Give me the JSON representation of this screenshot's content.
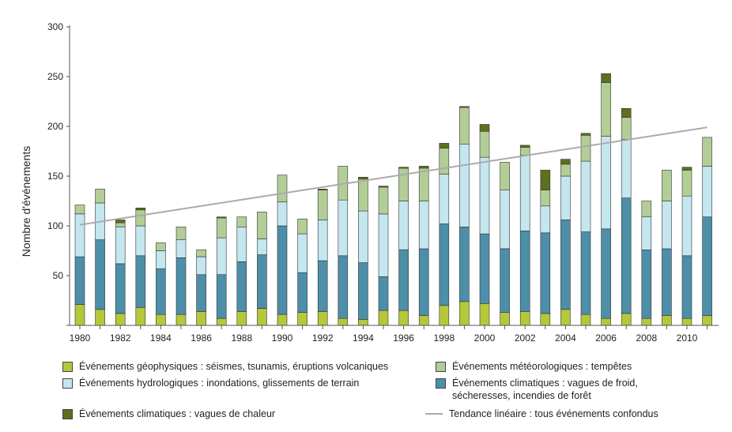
{
  "chart_data": {
    "type": "bar",
    "stacked": true,
    "ylabel": "Nombre d'événements",
    "ylim": [
      0,
      300
    ],
    "yticks": [
      "0",
      "50",
      "100",
      "150",
      "200",
      "250",
      "300"
    ],
    "categories": [
      "1980",
      "1981",
      "1982",
      "1983",
      "1984",
      "1985",
      "1986",
      "1987",
      "1988",
      "1989",
      "1990",
      "1991",
      "1992",
      "1993",
      "1994",
      "1995",
      "1996",
      "1997",
      "1998",
      "1999",
      "2000",
      "2001",
      "2002",
      "2003",
      "2004",
      "2005",
      "2006",
      "2007",
      "2008",
      "2009",
      "2010",
      "2011"
    ],
    "xtick_labels": [
      "1980",
      "",
      "1982",
      "",
      "1984",
      "",
      "1986",
      "",
      "1988",
      "",
      "1990",
      "",
      "1992",
      "",
      "1994",
      "",
      "1996",
      "",
      "1998",
      "",
      "2000",
      "",
      "2002",
      "",
      "2004",
      "",
      "2006",
      "",
      "2008",
      "",
      "2010",
      ""
    ],
    "series": [
      {
        "name": "Événements géophysiques : séismes, tsunamis, éruptions volcaniques",
        "color": "#b5c73a",
        "values": [
          21,
          16,
          12,
          18,
          11,
          11,
          14,
          7,
          14,
          17,
          11,
          13,
          14,
          7,
          6,
          15,
          15,
          10,
          20,
          24,
          22,
          13,
          14,
          12,
          16,
          11,
          7,
          12,
          7,
          10,
          7,
          10
        ]
      },
      {
        "name": "Événements climatiques : vagues de froid, sécheresses, incendies de forêt",
        "color": "#4d8ea8",
        "values": [
          48,
          70,
          50,
          52,
          46,
          57,
          37,
          44,
          50,
          54,
          89,
          40,
          51,
          63,
          57,
          34,
          61,
          67,
          82,
          75,
          70,
          64,
          81,
          81,
          90,
          83,
          90,
          116,
          69,
          67,
          63,
          99
        ]
      },
      {
        "name": "Événements hydrologiques : inondations, glissements de terrain",
        "color": "#c3e6ef",
        "values": [
          43,
          37,
          37,
          30,
          18,
          18,
          18,
          37,
          35,
          16,
          24,
          39,
          41,
          56,
          52,
          63,
          49,
          48,
          50,
          83,
          77,
          59,
          76,
          27,
          44,
          71,
          93,
          59,
          33,
          48,
          60,
          51
        ]
      },
      {
        "name": "Événements météorologiques : tempêtes",
        "color": "#b3cd96",
        "values": [
          9,
          14,
          4,
          16,
          8,
          13,
          7,
          20,
          10,
          27,
          27,
          15,
          30,
          34,
          32,
          27,
          33,
          33,
          26,
          37,
          26,
          28,
          8,
          16,
          12,
          26,
          54,
          22,
          16,
          31,
          26,
          29
        ]
      },
      {
        "name": "Événements climatiques : vagues de chaleur",
        "color": "#5e6f1e",
        "values": [
          0,
          0,
          3,
          2,
          0,
          0,
          0,
          1,
          0,
          0,
          0,
          0,
          1,
          0,
          2,
          1,
          1,
          2,
          5,
          1,
          7,
          0,
          2,
          20,
          5,
          2,
          9,
          9,
          0,
          0,
          3,
          0
        ]
      }
    ],
    "trend": {
      "name": "Tendance linéaire : tous événements confondus",
      "color": "#aaaaaa",
      "start": 101,
      "end": 199
    }
  },
  "legend": {
    "geo": "Événements géophysiques : séismes, tsunamis, éruptions volcaniques",
    "meteo": "Événements météorologiques : tempêtes",
    "hydro": "Événements hydrologiques : inondations, glissements de terrain",
    "clim_line1": "Événements climatiques : vagues de froid,",
    "clim_line2": "sécheresses, incendies de forêt",
    "heat": "Événements climatiques : vagues de chaleur",
    "trend": "Tendance linéaire : tous événements confondus"
  }
}
